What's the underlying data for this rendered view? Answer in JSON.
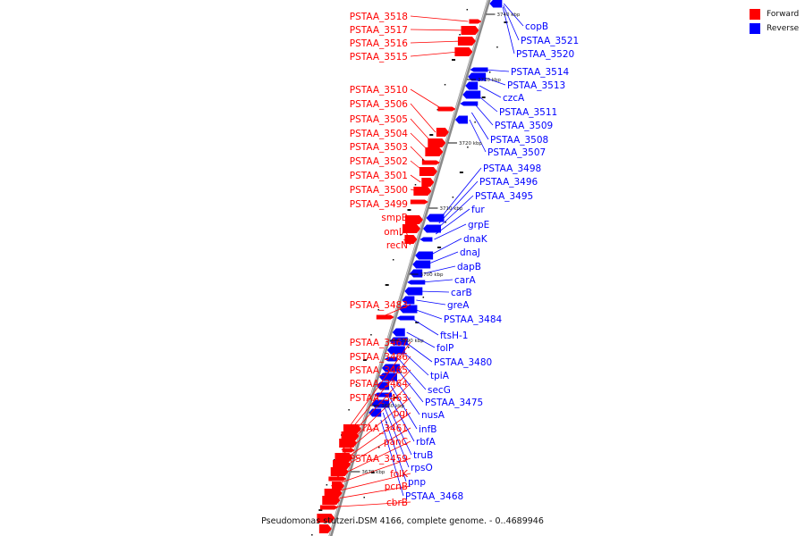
{
  "caption": "Pseudomonas stutzeri DSM 4166, complete genome. - 0..4689946",
  "legend": [
    {
      "label": "Forward",
      "color": "#ff0000"
    },
    {
      "label": "Reverse",
      "color": "#0000ff"
    }
  ],
  "axis": {
    "backbone_color": "#8a8a8a",
    "ticks": [
      "3740 kbp",
      "3730 kbp",
      "3720 kbp",
      "3710 kbp",
      "3700 kbp",
      "3690 kbp",
      "3680 kbp",
      "3670 kbp"
    ]
  },
  "forward_genes": [
    "PSTAA_3518",
    "PSTAA_3517",
    "PSTAA_3516",
    "PSTAA_3515",
    "PSTAA_3510",
    "PSTAA_3506",
    "PSTAA_3505",
    "PSTAA_3504",
    "PSTAA_3503",
    "PSTAA_3502",
    "PSTAA_3501",
    "PSTAA_3500",
    "PSTAA_3499",
    "smpB",
    "omlA",
    "recN",
    "PSTAA_3483",
    "PSTAA_3467",
    "PSTAA_3466",
    "PSTAA_3465",
    "PSTAA_3464",
    "PSTAA_3463",
    "pgi",
    "PSTAA_3461",
    "panC",
    "PSTAA_3459",
    "folK",
    "pcnB",
    "cbrB"
  ],
  "reverse_genes": [
    "copB",
    "PSTAA_3521",
    "PSTAA_3520",
    "PSTAA_3514",
    "PSTAA_3513",
    "czcA",
    "PSTAA_3511",
    "PSTAA_3509",
    "PSTAA_3508",
    "PSTAA_3507",
    "PSTAA_3498",
    "PSTAA_3496",
    "PSTAA_3495",
    "fur",
    "grpE",
    "dnaK",
    "dnaJ",
    "dapB",
    "carA",
    "carB",
    "greA",
    "PSTAA_3484",
    "ftsH-1",
    "folP",
    "PSTAA_3480",
    "tpiA",
    "secG",
    "PSTAA_3475",
    "nusA",
    "infB",
    "rbfA",
    "truB",
    "rpsO",
    "pnp",
    "PSTAA_3468"
  ]
}
